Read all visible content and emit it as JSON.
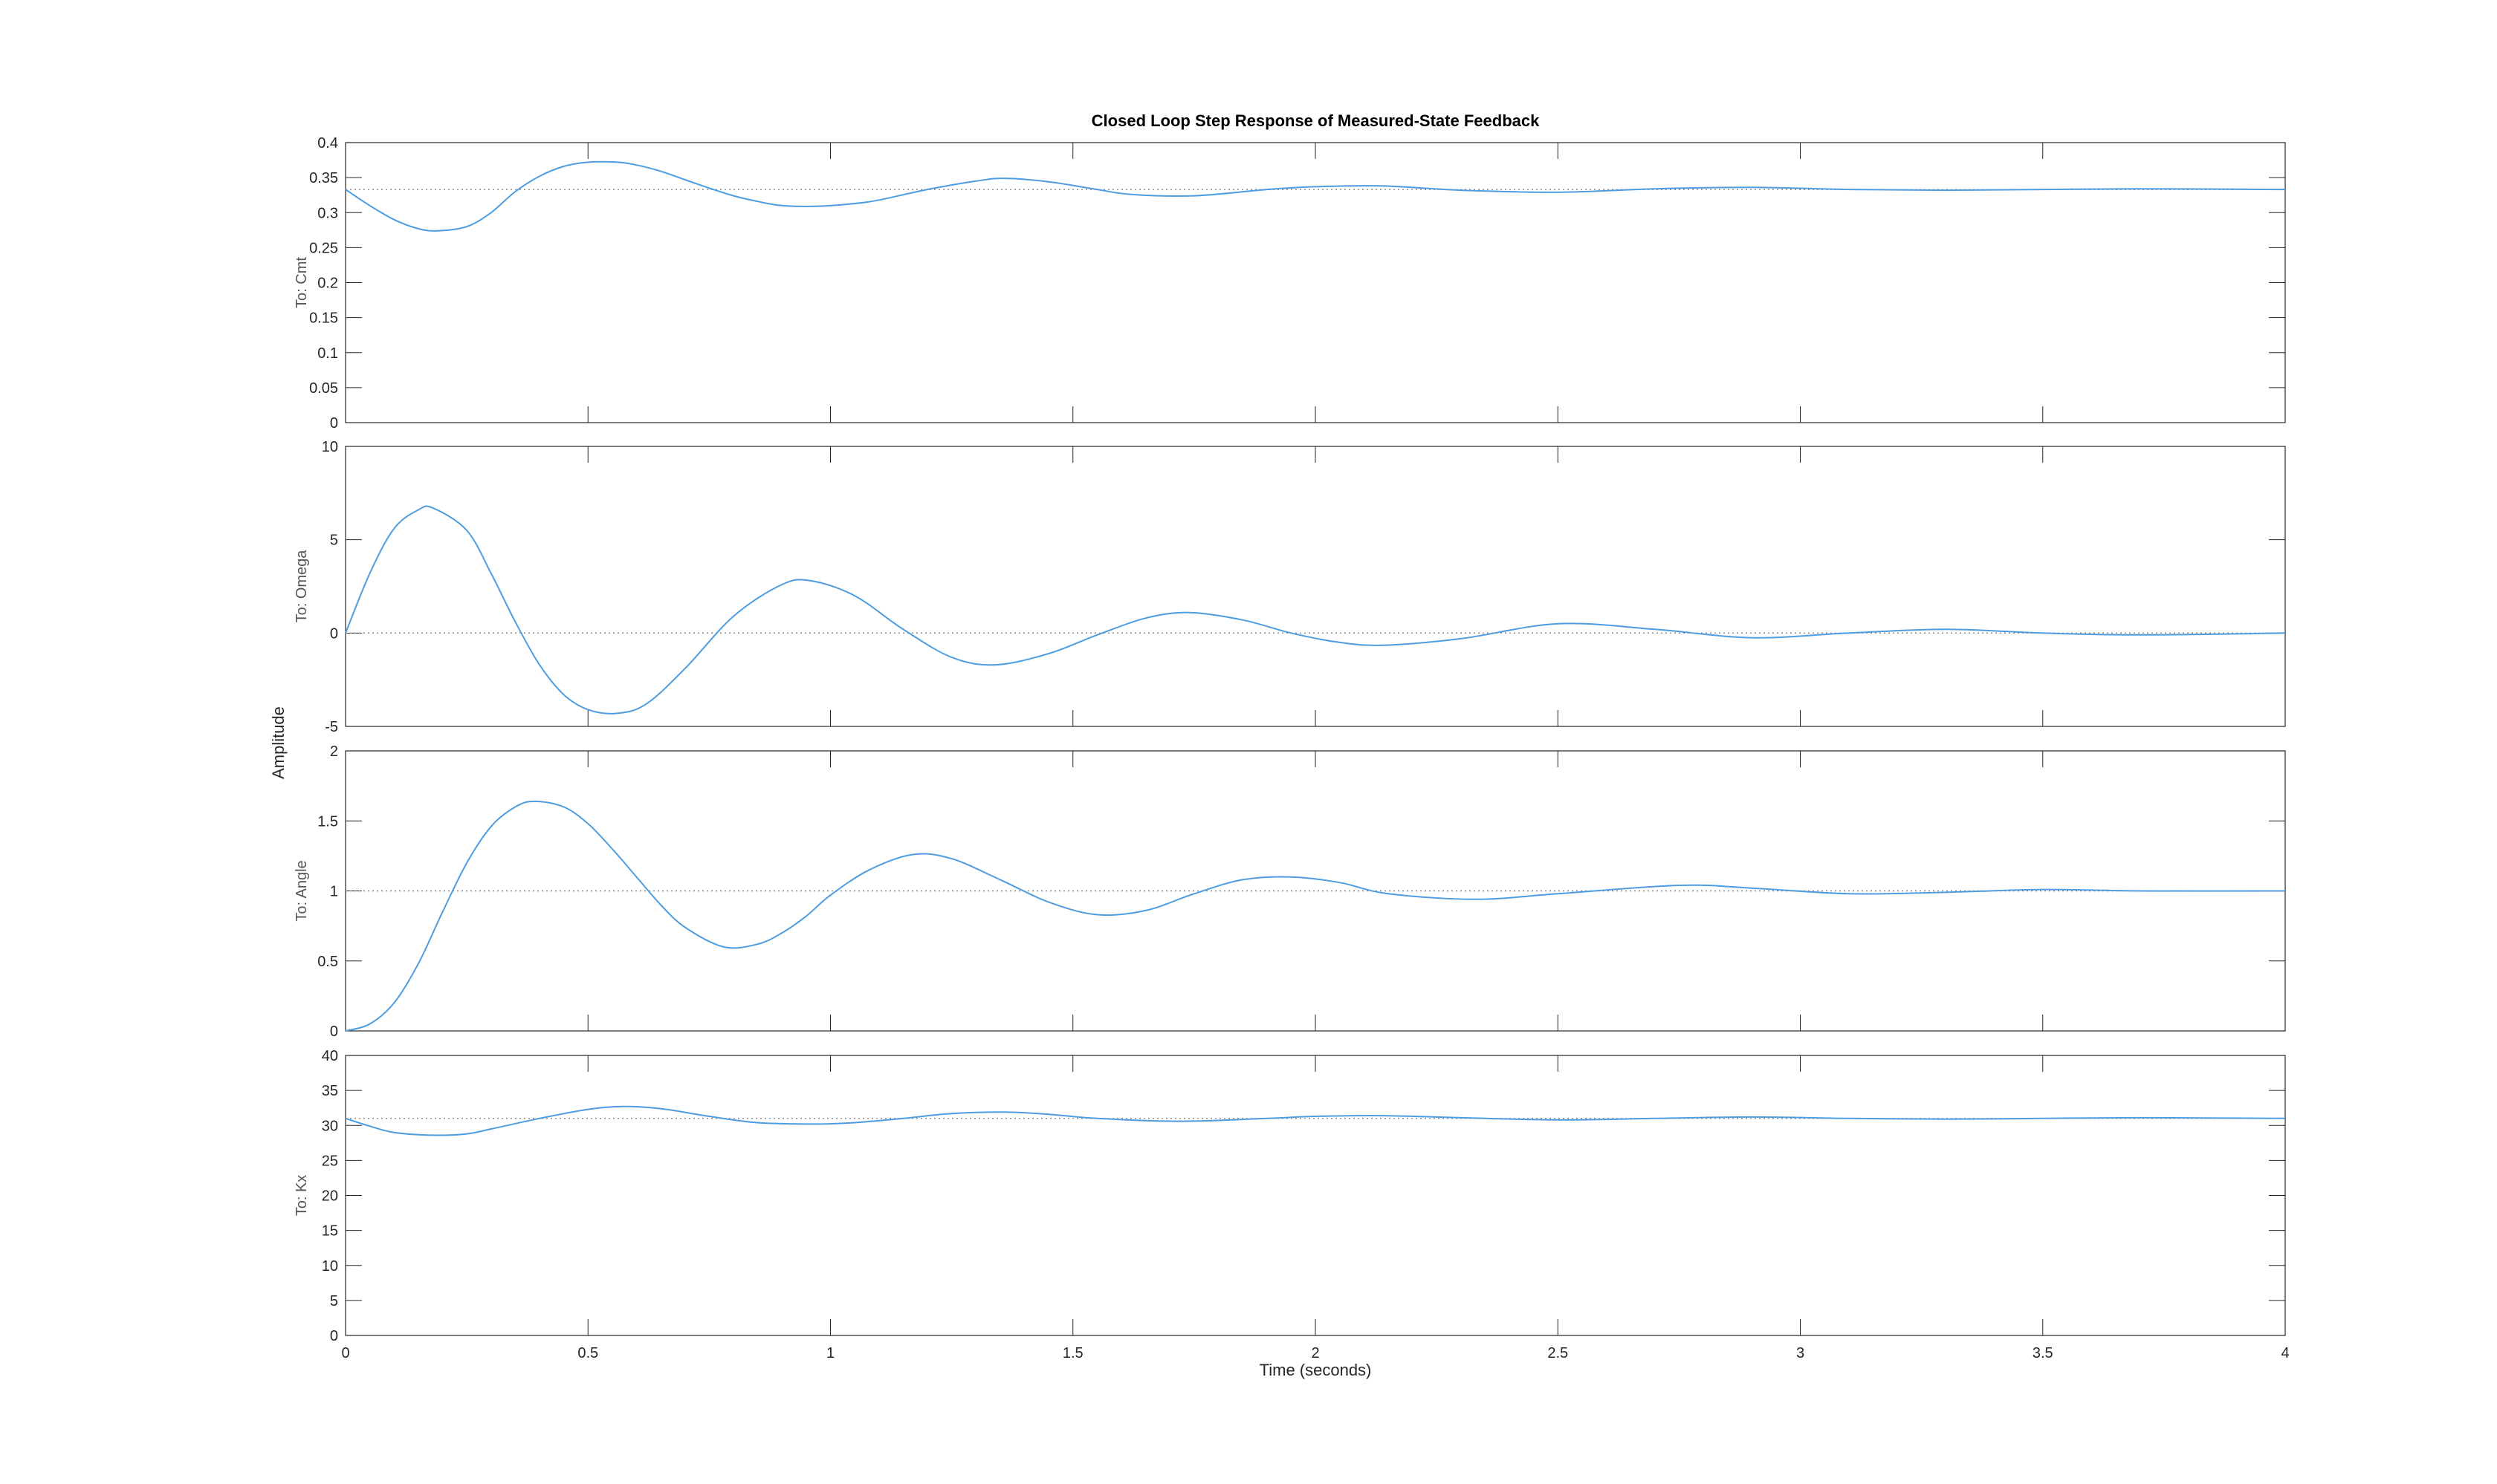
{
  "figure": {
    "title": "Closed Loop Step Response of Measured-State Feedback",
    "ylabel": "Amplitude",
    "xlabel": "Time (seconds)"
  },
  "colors": {
    "response": "#4d9de0",
    "steady_state": "#888888",
    "axes": "#262626",
    "grid_tick": "#262626"
  },
  "chart_data": [
    {
      "type": "line",
      "panel_label": "To: Cmt",
      "xlim": [
        0,
        4
      ],
      "ylim": [
        0,
        0.4
      ],
      "xticks": [
        0,
        0.5,
        1,
        1.5,
        2,
        2.5,
        3,
        3.5,
        4
      ],
      "xtick_labels": [],
      "yticks": [
        0,
        0.05,
        0.1,
        0.15,
        0.2,
        0.25,
        0.3,
        0.35,
        0.4
      ],
      "ytick_labels": [
        "0",
        "0.05",
        "0.1",
        "0.15",
        "0.2",
        "0.25",
        "0.3",
        "0.35",
        "0.4"
      ],
      "steady_state": 0.333,
      "x": [
        0,
        0.05,
        0.1,
        0.15,
        0.19,
        0.25,
        0.3,
        0.35,
        0.4,
        0.45,
        0.5,
        0.56,
        0.6,
        0.65,
        0.7,
        0.75,
        0.8,
        0.85,
        0.9,
        0.97,
        1.05,
        1.1,
        1.2,
        1.3,
        1.36,
        1.45,
        1.55,
        1.62,
        1.75,
        1.9,
        2.0,
        2.14,
        2.3,
        2.5,
        2.7,
        2.9,
        3.1,
        3.3,
        3.5,
        3.7,
        4.0
      ],
      "y": [
        0.333,
        0.31,
        0.29,
        0.277,
        0.274,
        0.28,
        0.3,
        0.33,
        0.352,
        0.366,
        0.372,
        0.372,
        0.368,
        0.359,
        0.347,
        0.335,
        0.324,
        0.316,
        0.31,
        0.309,
        0.313,
        0.318,
        0.333,
        0.345,
        0.349,
        0.344,
        0.333,
        0.326,
        0.324,
        0.333,
        0.337,
        0.338,
        0.332,
        0.329,
        0.334,
        0.336,
        0.333,
        0.332,
        0.333,
        0.334,
        0.333
      ]
    },
    {
      "type": "line",
      "panel_label": "To: Omega",
      "xlim": [
        0,
        4
      ],
      "ylim": [
        -5,
        10
      ],
      "xticks": [
        0,
        0.5,
        1,
        1.5,
        2,
        2.5,
        3,
        3.5,
        4
      ],
      "xtick_labels": [],
      "yticks": [
        -5,
        0,
        5,
        10
      ],
      "ytick_labels": [
        "-5",
        "0",
        "5",
        "10"
      ],
      "steady_state": 0,
      "x": [
        0,
        0.05,
        0.1,
        0.15,
        0.18,
        0.25,
        0.3,
        0.35,
        0.4,
        0.45,
        0.5,
        0.56,
        0.62,
        0.7,
        0.8,
        0.9,
        0.96,
        1.05,
        1.15,
        1.25,
        1.34,
        1.45,
        1.55,
        1.65,
        1.74,
        1.85,
        1.95,
        2.05,
        2.14,
        2.3,
        2.5,
        2.7,
        2.9,
        3.1,
        3.3,
        3.5,
        3.7,
        4.0
      ],
      "y": [
        0,
        3.2,
        5.6,
        6.6,
        6.7,
        5.5,
        3.2,
        0.6,
        -1.7,
        -3.3,
        -4.1,
        -4.3,
        -3.8,
        -1.9,
        0.9,
        2.6,
        2.8,
        2.0,
        0.2,
        -1.3,
        -1.7,
        -1.1,
        -0.1,
        0.8,
        1.1,
        0.7,
        0.0,
        -0.5,
        -0.65,
        -0.3,
        0.5,
        0.2,
        -0.25,
        0.0,
        0.2,
        0.0,
        -0.1,
        0.0
      ]
    },
    {
      "type": "line",
      "panel_label": "To: Angle",
      "xlim": [
        0,
        4
      ],
      "ylim": [
        0,
        2
      ],
      "xticks": [
        0,
        0.5,
        1,
        1.5,
        2,
        2.5,
        3,
        3.5,
        4
      ],
      "xtick_labels": [],
      "yticks": [
        0,
        0.5,
        1,
        1.5,
        2
      ],
      "ytick_labels": [
        "0",
        "0.5",
        "1",
        "1.5",
        "2"
      ],
      "steady_state": 1,
      "x": [
        0,
        0.05,
        0.1,
        0.15,
        0.2,
        0.25,
        0.3,
        0.35,
        0.39,
        0.45,
        0.5,
        0.55,
        0.6,
        0.65,
        0.7,
        0.78,
        0.85,
        0.9,
        0.95,
        1.0,
        1.08,
        1.17,
        1.25,
        1.35,
        1.45,
        1.55,
        1.65,
        1.75,
        1.85,
        1.95,
        2.05,
        2.15,
        2.33,
        2.5,
        2.75,
        2.9,
        3.1,
        3.3,
        3.5,
        3.7,
        4.0
      ],
      "y": [
        0,
        0.05,
        0.2,
        0.48,
        0.85,
        1.2,
        1.46,
        1.6,
        1.64,
        1.6,
        1.48,
        1.3,
        1.1,
        0.9,
        0.74,
        0.6,
        0.62,
        0.7,
        0.82,
        0.97,
        1.15,
        1.26,
        1.23,
        1.08,
        0.92,
        0.83,
        0.86,
        0.98,
        1.08,
        1.1,
        1.06,
        0.98,
        0.94,
        0.98,
        1.04,
        1.02,
        0.98,
        0.99,
        1.01,
        1.0,
        1.0
      ]
    },
    {
      "type": "line",
      "panel_label": "To: Kx",
      "xlim": [
        0,
        4
      ],
      "ylim": [
        0,
        40
      ],
      "xticks": [
        0,
        0.5,
        1,
        1.5,
        2,
        2.5,
        3,
        3.5,
        4
      ],
      "xtick_labels": [
        "0",
        "0.5",
        "1",
        "1.5",
        "2",
        "2.5",
        "3",
        "3.5",
        "4"
      ],
      "yticks": [
        0,
        5,
        10,
        15,
        20,
        25,
        30,
        35,
        40
      ],
      "ytick_labels": [
        "0",
        "5",
        "10",
        "15",
        "20",
        "25",
        "30",
        "35",
        "40"
      ],
      "steady_state": 31,
      "x": [
        0,
        0.05,
        0.1,
        0.18,
        0.25,
        0.3,
        0.4,
        0.5,
        0.57,
        0.65,
        0.75,
        0.85,
        0.97,
        1.05,
        1.15,
        1.25,
        1.36,
        1.45,
        1.55,
        1.72,
        1.9,
        2.0,
        2.14,
        2.3,
        2.5,
        2.7,
        2.9,
        3.1,
        3.3,
        3.5,
        3.7,
        4.0
      ],
      "y": [
        31.0,
        29.9,
        29.0,
        28.6,
        28.8,
        29.5,
        31.0,
        32.3,
        32.7,
        32.4,
        31.3,
        30.4,
        30.2,
        30.4,
        31.0,
        31.7,
        31.9,
        31.6,
        31.0,
        30.6,
        31.0,
        31.3,
        31.4,
        31.1,
        30.8,
        31.0,
        31.2,
        31.0,
        30.9,
        31.0,
        31.1,
        31.0
      ]
    }
  ]
}
